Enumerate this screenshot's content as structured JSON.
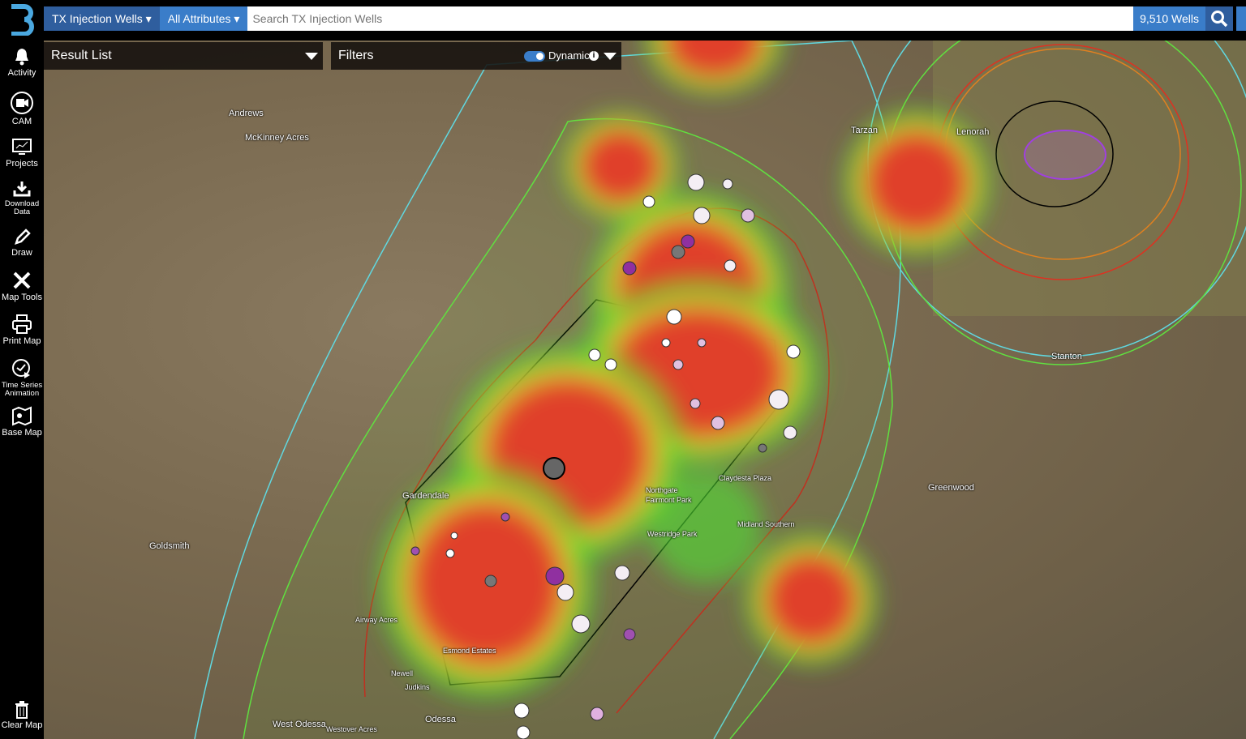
{
  "topbar": {
    "dataset": "TX Injection Wells",
    "attribute": "All Attributes",
    "search_placeholder": "Search TX Injection Wells",
    "count": "9,510 Wells"
  },
  "sidebar": [
    {
      "label": "Activity",
      "icon": "bell-icon"
    },
    {
      "label": "CAM",
      "icon": "video-camera-icon"
    },
    {
      "label": "Projects",
      "icon": "monitor-chart-icon"
    },
    {
      "label": "Download Data",
      "icon": "download-icon"
    },
    {
      "label": "Draw",
      "icon": "pencil-icon"
    },
    {
      "label": "Map Tools",
      "icon": "tools-icon"
    },
    {
      "label": "Print Map",
      "icon": "printer-icon"
    },
    {
      "label": "Time Series Animation",
      "icon": "clock-play-icon"
    },
    {
      "label": "Base Map",
      "icon": "map-icon"
    },
    {
      "label": "Clear Map",
      "icon": "trash-icon"
    }
  ],
  "panels": {
    "result_list": "Result List",
    "filters": "Filters",
    "dynamic": "Dynamic",
    "dynamic_on": true
  },
  "map_labels": [
    "Andrews",
    "McKinney Acres",
    "Tarzan",
    "Lenorah",
    "Stanton",
    "Goldsmith",
    "Gardendale",
    "Greenwood",
    "Midland Southern",
    "Northgate",
    "Fairmont Park",
    "Claydesta Plaza",
    "Westridge Park",
    "Airway Acres",
    "Esmond Estates",
    "Newell",
    "Judkins",
    "Odessa",
    "West Odessa",
    "Westover Acres"
  ],
  "colors": {
    "heat_high": "#e0402c",
    "heat_mid": "#f0d020",
    "heat_low": "#40e020",
    "accent": "#3a7dc9"
  }
}
